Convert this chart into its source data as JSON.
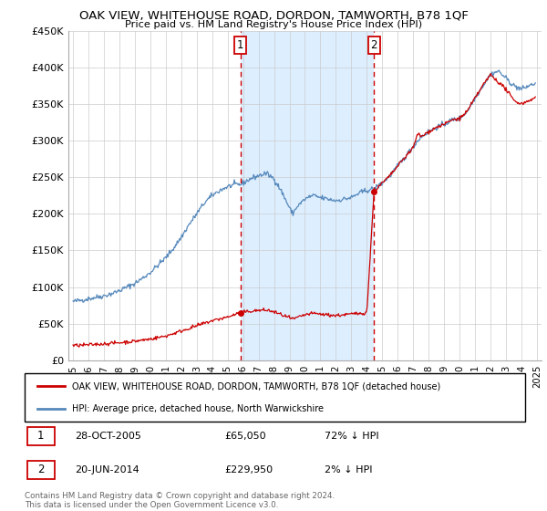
{
  "title": "OAK VIEW, WHITEHOUSE ROAD, DORDON, TAMWORTH, B78 1QF",
  "subtitle": "Price paid vs. HM Land Registry's House Price Index (HPI)",
  "ylabel_ticks": [
    "£0",
    "£50K",
    "£100K",
    "£150K",
    "£200K",
    "£250K",
    "£300K",
    "£350K",
    "£400K",
    "£450K"
  ],
  "ylim": [
    0,
    450000
  ],
  "xlim_start": 1994.7,
  "xlim_end": 2025.3,
  "red_line_label": "OAK VIEW, WHITEHOUSE ROAD, DORDON, TAMWORTH, B78 1QF (detached house)",
  "blue_line_label": "HPI: Average price, detached house, North Warwickshire",
  "sale1_date": "28-OCT-2005",
  "sale1_price": "£65,050",
  "sale1_hpi": "72% ↓ HPI",
  "sale1_x": 2005.82,
  "sale1_y": 65050,
  "sale2_date": "20-JUN-2014",
  "sale2_price": "£229,950",
  "sale2_hpi": "2% ↓ HPI",
  "sale2_x": 2014.47,
  "sale2_y": 229950,
  "footer": "Contains HM Land Registry data © Crown copyright and database right 2024.\nThis data is licensed under the Open Government Licence v3.0.",
  "red_color": "#cc0000",
  "blue_color": "#5588bb",
  "shade_color": "#ddeeff",
  "background_color": "#ffffff",
  "grid_color": "#cccccc",
  "hpi_blue_control": [
    [
      1995.0,
      80000
    ],
    [
      1995.5,
      82000
    ],
    [
      1996.0,
      84000
    ],
    [
      1996.5,
      86000
    ],
    [
      1997.0,
      88000
    ],
    [
      1997.5,
      91000
    ],
    [
      1998.0,
      95000
    ],
    [
      1998.5,
      100000
    ],
    [
      1999.0,
      105000
    ],
    [
      1999.5,
      112000
    ],
    [
      2000.0,
      120000
    ],
    [
      2000.5,
      130000
    ],
    [
      2001.0,
      140000
    ],
    [
      2001.5,
      153000
    ],
    [
      2002.0,
      168000
    ],
    [
      2002.5,
      185000
    ],
    [
      2003.0,
      200000
    ],
    [
      2003.5,
      215000
    ],
    [
      2004.0,
      225000
    ],
    [
      2004.5,
      232000
    ],
    [
      2005.0,
      237000
    ],
    [
      2005.5,
      240000
    ],
    [
      2005.82,
      240000
    ],
    [
      2006.0,
      242000
    ],
    [
      2006.5,
      248000
    ],
    [
      2007.0,
      252000
    ],
    [
      2007.5,
      255000
    ],
    [
      2008.0,
      248000
    ],
    [
      2008.5,
      230000
    ],
    [
      2009.0,
      208000
    ],
    [
      2009.2,
      200000
    ],
    [
      2009.5,
      210000
    ],
    [
      2010.0,
      220000
    ],
    [
      2010.5,
      225000
    ],
    [
      2011.0,
      222000
    ],
    [
      2011.5,
      220000
    ],
    [
      2012.0,
      218000
    ],
    [
      2012.5,
      220000
    ],
    [
      2013.0,
      222000
    ],
    [
      2013.5,
      228000
    ],
    [
      2014.0,
      232000
    ],
    [
      2014.47,
      234000
    ],
    [
      2015.0,
      242000
    ],
    [
      2015.5,
      252000
    ],
    [
      2016.0,
      265000
    ],
    [
      2016.5,
      278000
    ],
    [
      2017.0,
      292000
    ],
    [
      2017.5,
      305000
    ],
    [
      2018.0,
      312000
    ],
    [
      2018.5,
      318000
    ],
    [
      2019.0,
      322000
    ],
    [
      2019.5,
      328000
    ],
    [
      2020.0,
      330000
    ],
    [
      2020.5,
      340000
    ],
    [
      2021.0,
      358000
    ],
    [
      2021.5,
      375000
    ],
    [
      2022.0,
      390000
    ],
    [
      2022.5,
      395000
    ],
    [
      2023.0,
      385000
    ],
    [
      2023.5,
      375000
    ],
    [
      2024.0,
      370000
    ],
    [
      2024.5,
      375000
    ],
    [
      2024.9,
      378000
    ]
  ],
  "red_hpi_control": [
    [
      1995.0,
      20000
    ],
    [
      1996.0,
      21000
    ],
    [
      1997.0,
      22500
    ],
    [
      1998.0,
      24000
    ],
    [
      1999.0,
      26000
    ],
    [
      2000.0,
      29000
    ],
    [
      2001.0,
      33000
    ],
    [
      2002.0,
      40000
    ],
    [
      2003.0,
      47000
    ],
    [
      2004.0,
      54000
    ],
    [
      2005.0,
      59000
    ],
    [
      2005.82,
      65050
    ],
    [
      2006.5,
      67000
    ],
    [
      2007.0,
      68000
    ],
    [
      2007.5,
      68500
    ],
    [
      2008.0,
      66000
    ],
    [
      2008.5,
      62000
    ],
    [
      2009.0,
      58000
    ],
    [
      2009.2,
      56000
    ],
    [
      2009.5,
      58000
    ],
    [
      2010.0,
      62000
    ],
    [
      2010.5,
      64000
    ],
    [
      2011.0,
      63000
    ],
    [
      2011.5,
      62000
    ],
    [
      2012.0,
      61000
    ],
    [
      2012.5,
      62000
    ],
    [
      2013.0,
      63000
    ],
    [
      2013.5,
      64000
    ],
    [
      2014.0,
      65000
    ],
    [
      2014.47,
      229950
    ],
    [
      2015.0,
      242000
    ],
    [
      2015.5,
      252000
    ],
    [
      2016.0,
      265000
    ],
    [
      2016.5,
      278000
    ],
    [
      2017.0,
      290000
    ],
    [
      2017.3,
      310000
    ],
    [
      2017.5,
      305000
    ],
    [
      2018.0,
      312000
    ],
    [
      2018.5,
      318000
    ],
    [
      2019.0,
      322000
    ],
    [
      2019.5,
      328000
    ],
    [
      2020.0,
      330000
    ],
    [
      2020.5,
      340000
    ],
    [
      2021.0,
      358000
    ],
    [
      2021.5,
      375000
    ],
    [
      2022.0,
      390000
    ],
    [
      2022.5,
      380000
    ],
    [
      2023.0,
      370000
    ],
    [
      2023.5,
      355000
    ],
    [
      2024.0,
      350000
    ],
    [
      2024.5,
      355000
    ],
    [
      2024.9,
      358000
    ]
  ]
}
